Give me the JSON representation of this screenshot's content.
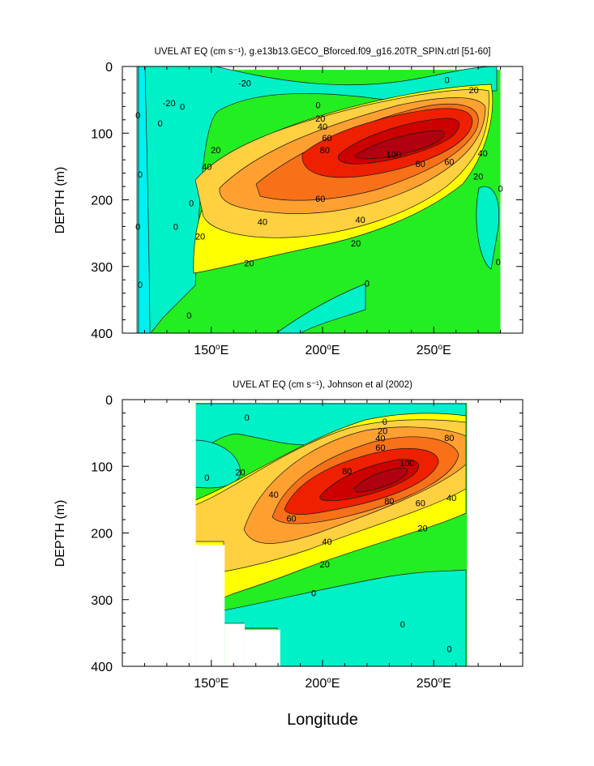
{
  "page": {
    "xlabel": "Longitude"
  },
  "chart_data": [
    {
      "type": "heatmap",
      "title": "UVEL AT EQ (cm s⁻¹), g.e13b13.GECO_Bforced.f09_g16.20TR_SPIN.ctrl [51-60]",
      "ylabel": "DEPTH (m)",
      "xlabel": "",
      "x_units": "degrees east",
      "xlim": [
        110,
        290
      ],
      "ylim": [
        0,
        400
      ],
      "y_inverted": true,
      "x_ticks": [
        {
          "value": 150,
          "label": "150°E"
        },
        {
          "value": 200,
          "label": "200°E"
        },
        {
          "value": 250,
          "label": "250°E"
        }
      ],
      "y_ticks": [
        {
          "value": 0,
          "label": "0"
        },
        {
          "value": 100,
          "label": "100"
        },
        {
          "value": 200,
          "label": "200"
        },
        {
          "value": 300,
          "label": "300"
        },
        {
          "value": 400,
          "label": "400"
        }
      ],
      "data_extent_lon": [
        117,
        280
      ],
      "data_extent_depth": [
        5,
        400
      ],
      "core": {
        "lon": 228,
        "depth": 125,
        "max_speed": 105
      },
      "contour_levels": [
        -20,
        0,
        20,
        40,
        60,
        80,
        100
      ],
      "contour_labels": [
        {
          "text": "-20",
          "lon": 165,
          "depth": 25
        },
        {
          "text": "-20",
          "lon": 131,
          "depth": 55
        },
        {
          "text": "0",
          "lon": 256,
          "depth": 20
        },
        {
          "text": "20",
          "lon": 268,
          "depth": 35
        },
        {
          "text": "0",
          "lon": 137,
          "depth": 60
        },
        {
          "text": "0",
          "lon": 198,
          "depth": 58
        },
        {
          "text": "0",
          "lon": 117,
          "depth": 73
        },
        {
          "text": "0",
          "lon": 127,
          "depth": 85
        },
        {
          "text": "20",
          "lon": 199,
          "depth": 78
        },
        {
          "text": "40",
          "lon": 200,
          "depth": 90
        },
        {
          "text": "60",
          "lon": 202,
          "depth": 107
        },
        {
          "text": "80",
          "lon": 201,
          "depth": 125
        },
        {
          "text": "20",
          "lon": 152,
          "depth": 125
        },
        {
          "text": "40",
          "lon": 148,
          "depth": 150
        },
        {
          "text": "100",
          "lon": 232,
          "depth": 132
        },
        {
          "text": "80",
          "lon": 244,
          "depth": 146
        },
        {
          "text": "60",
          "lon": 257,
          "depth": 143
        },
        {
          "text": "40",
          "lon": 272,
          "depth": 130
        },
        {
          "text": "20",
          "lon": 270,
          "depth": 165
        },
        {
          "text": "0",
          "lon": 118,
          "depth": 162
        },
        {
          "text": "0",
          "lon": 280,
          "depth": 183
        },
        {
          "text": "60",
          "lon": 199,
          "depth": 198
        },
        {
          "text": "0",
          "lon": 141,
          "depth": 205
        },
        {
          "text": "40",
          "lon": 173,
          "depth": 233
        },
        {
          "text": "40",
          "lon": 217,
          "depth": 230
        },
        {
          "text": "0",
          "lon": 117,
          "depth": 240
        },
        {
          "text": "0",
          "lon": 134,
          "depth": 240
        },
        {
          "text": "20",
          "lon": 145,
          "depth": 255
        },
        {
          "text": "20",
          "lon": 215,
          "depth": 265
        },
        {
          "text": "20",
          "lon": 167,
          "depth": 295
        },
        {
          "text": "0",
          "lon": 279,
          "depth": 293
        },
        {
          "text": "0",
          "lon": 118,
          "depth": 327
        },
        {
          "text": "0",
          "lon": 220,
          "depth": 325
        },
        {
          "text": "0",
          "lon": 140,
          "depth": 373
        }
      ]
    },
    {
      "type": "heatmap",
      "title": "UVEL AT EQ (cm s⁻¹), Johnson et al (2002)",
      "ylabel": "DEPTH (m)",
      "xlabel": "",
      "x_units": "degrees east",
      "xlim": [
        110,
        290
      ],
      "ylim": [
        0,
        400
      ],
      "y_inverted": true,
      "x_ticks": [
        {
          "value": 150,
          "label": "150°E"
        },
        {
          "value": 200,
          "label": "200°E"
        },
        {
          "value": 250,
          "label": "250°E"
        }
      ],
      "y_ticks": [
        {
          "value": 0,
          "label": "0"
        },
        {
          "value": 100,
          "label": "100"
        },
        {
          "value": 200,
          "label": "200"
        },
        {
          "value": 300,
          "label": "300"
        },
        {
          "value": 400,
          "label": "400"
        }
      ],
      "data_extent_lon": [
        143,
        265
      ],
      "data_extent_depth": [
        5,
        400
      ],
      "core": {
        "lon": 230,
        "depth": 108,
        "max_speed": 110
      },
      "contour_levels": [
        0,
        20,
        40,
        60,
        80,
        100
      ],
      "contour_labels": [
        {
          "text": "0",
          "lon": 166,
          "depth": 27
        },
        {
          "text": "0",
          "lon": 228,
          "depth": 33
        },
        {
          "text": "20",
          "lon": 227,
          "depth": 47
        },
        {
          "text": "40",
          "lon": 226,
          "depth": 58
        },
        {
          "text": "60",
          "lon": 226,
          "depth": 72
        },
        {
          "text": "80",
          "lon": 257,
          "depth": 57
        },
        {
          "text": "0",
          "lon": 148,
          "depth": 117
        },
        {
          "text": "20",
          "lon": 163,
          "depth": 109
        },
        {
          "text": "80",
          "lon": 211,
          "depth": 107
        },
        {
          "text": "100",
          "lon": 238,
          "depth": 95
        },
        {
          "text": "40",
          "lon": 178,
          "depth": 142
        },
        {
          "text": "80",
          "lon": 230,
          "depth": 152
        },
        {
          "text": "60",
          "lon": 244,
          "depth": 155
        },
        {
          "text": "40",
          "lon": 258,
          "depth": 147
        },
        {
          "text": "60",
          "lon": 186,
          "depth": 178
        },
        {
          "text": "20",
          "lon": 245,
          "depth": 193
        },
        {
          "text": "40",
          "lon": 202,
          "depth": 213
        },
        {
          "text": "20",
          "lon": 201,
          "depth": 247
        },
        {
          "text": "0",
          "lon": 196,
          "depth": 290
        },
        {
          "text": "0",
          "lon": 236,
          "depth": 337
        },
        {
          "text": "0",
          "lon": 257,
          "depth": 374
        }
      ],
      "empty_regions": [
        {
          "lon_min": 110,
          "lon_max": 143,
          "depth_min": 0,
          "depth_max": 400
        },
        {
          "lon_min": 143,
          "lon_max": 156,
          "depth_min": 218,
          "depth_max": 400
        },
        {
          "lon_min": 156,
          "lon_max": 165,
          "depth_min": 336,
          "depth_max": 400
        },
        {
          "lon_min": 165,
          "lon_max": 181,
          "depth_min": 345,
          "depth_max": 400
        },
        {
          "lon_min": 265,
          "lon_max": 290,
          "depth_min": 0,
          "depth_max": 400
        }
      ]
    }
  ],
  "palette": {
    "cyan_neg": "#00f0f0",
    "cyan": "#00f0c8",
    "green": "#22ee22",
    "yellow": "#ffff00",
    "orange_light": "#ffd040",
    "orange": "#ffa030",
    "orange_dark": "#f87018",
    "red": "#ee2000",
    "red_dark": "#cc0000",
    "red_core": "#b00010",
    "contour": "#1a1a1a",
    "frame": "#000000",
    "background": "#ffffff"
  }
}
